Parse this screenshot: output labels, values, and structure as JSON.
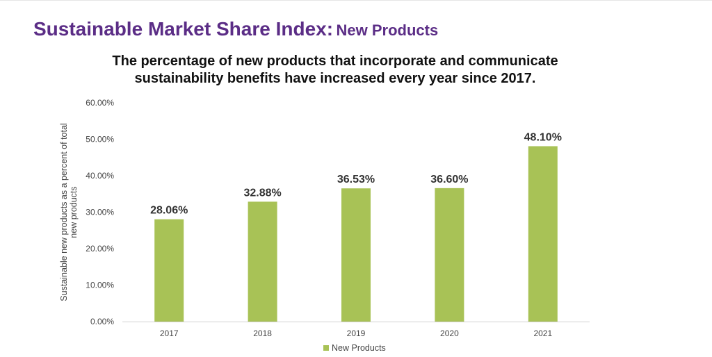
{
  "header": {
    "title_main": "Sustainable Market Share Index:",
    "title_sub": "New Products"
  },
  "subtitle_lines": [
    "The percentage of new products that incorporate and communicate",
    "sustainability benefits have increased every year since 2017."
  ],
  "colors": {
    "title": "#5b2d86",
    "bar": "#a8c256"
  },
  "chart_data": {
    "type": "bar",
    "categories": [
      "2017",
      "2018",
      "2019",
      "2020",
      "2021"
    ],
    "series": [
      {
        "name": "New Products",
        "values": [
          28.06,
          32.88,
          36.53,
          36.6,
          48.1
        ]
      }
    ],
    "data_labels": [
      "28.06%",
      "32.88%",
      "36.53%",
      "36.60%",
      "48.10%"
    ],
    "ylabel_lines": [
      "Sustainable new products as a percent of total",
      "new products"
    ],
    "ylim": [
      0,
      60
    ],
    "yticks": [
      0,
      10,
      20,
      30,
      40,
      50,
      60
    ],
    "ytick_labels": [
      "0.00%",
      "10.00%",
      "20.00%",
      "30.00%",
      "40.00%",
      "50.00%",
      "60.00%"
    ],
    "grid": false,
    "legend": {
      "position": "bottom",
      "entries": [
        "New Products"
      ]
    }
  }
}
